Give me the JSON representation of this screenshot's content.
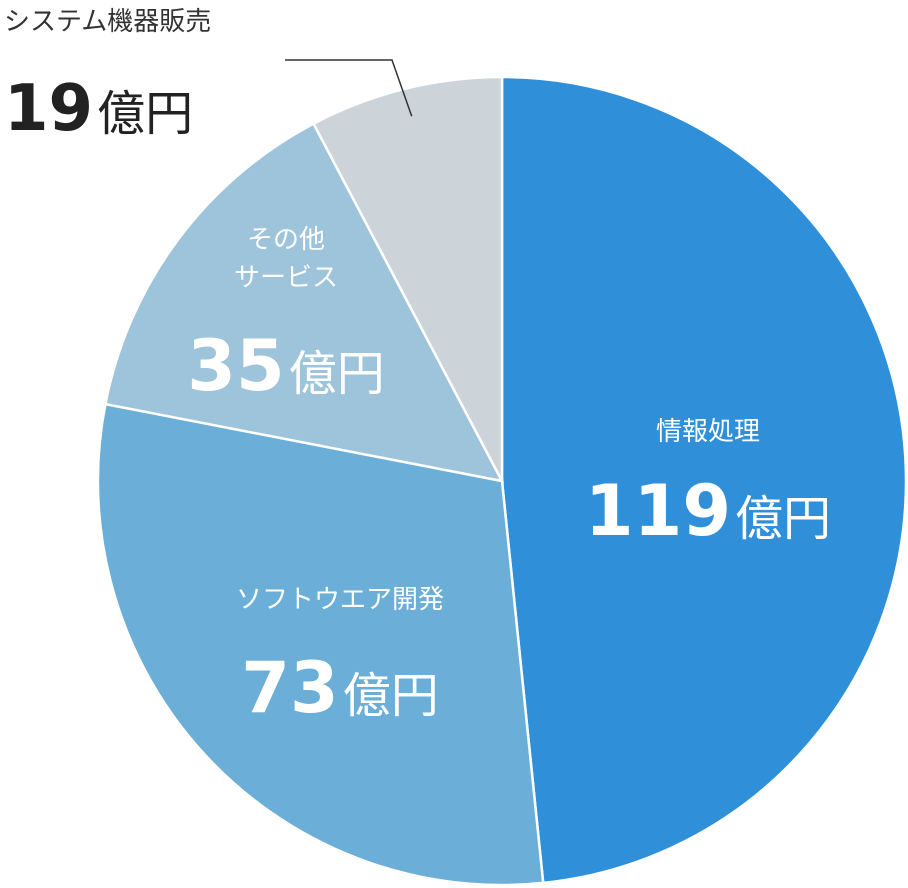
{
  "chart_data": {
    "type": "pie",
    "unit": "億円",
    "slices": [
      {
        "label": "情報処理",
        "value": 119,
        "color": "#2f8fd8"
      },
      {
        "label": "ソフトウエア開発",
        "value": 73,
        "color": "#6bafd8"
      },
      {
        "label": "その他サービス",
        "display_lines": [
          "その他",
          "サービス"
        ],
        "value": 35,
        "color": "#9ec4dc"
      },
      {
        "label": "システム機器販売",
        "value": 19,
        "color": "#ccd3d9"
      }
    ],
    "start_angle_deg": 0,
    "direction": "clockwise",
    "separator_color": "#ffffff"
  }
}
